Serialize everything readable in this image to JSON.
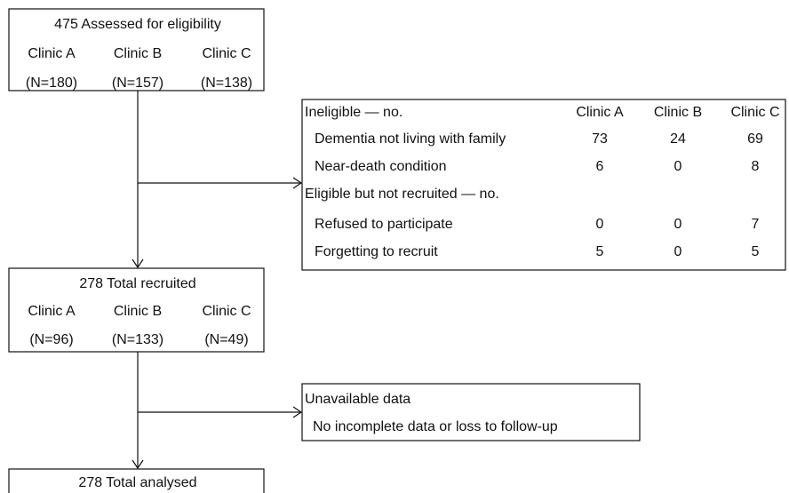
{
  "assessed": {
    "title": "475 Assessed for eligibility",
    "clinics": [
      "Clinic A",
      "Clinic B",
      "Clinic C"
    ],
    "counts": [
      "(N=180)",
      "(N=157)",
      "(N=138)"
    ]
  },
  "exclusions": {
    "columns": [
      "Clinic A",
      "Clinic B",
      "Clinic C"
    ],
    "groups": [
      {
        "heading": "Ineligible — no.",
        "rows": [
          {
            "label": "Dementia not living with family",
            "values": [
              73,
              24,
              69
            ]
          },
          {
            "label": "Near-death condition",
            "values": [
              6,
              0,
              8
            ]
          }
        ]
      },
      {
        "heading": "Eligible but not recruited — no.",
        "rows": [
          {
            "label": "Refused to participate",
            "values": [
              0,
              0,
              7
            ]
          },
          {
            "label": "Forgetting to recruit",
            "values": [
              5,
              0,
              5
            ]
          }
        ]
      }
    ]
  },
  "recruited": {
    "title": "278 Total recruited",
    "clinics": [
      "Clinic A",
      "Clinic B",
      "Clinic C"
    ],
    "counts": [
      "(N=96)",
      "(N=133)",
      "(N=49)"
    ]
  },
  "unavailable": {
    "title": "Unavailable data",
    "text": "No incomplete data or loss to follow-up"
  },
  "analysed": {
    "title": "278 Total analysed"
  }
}
